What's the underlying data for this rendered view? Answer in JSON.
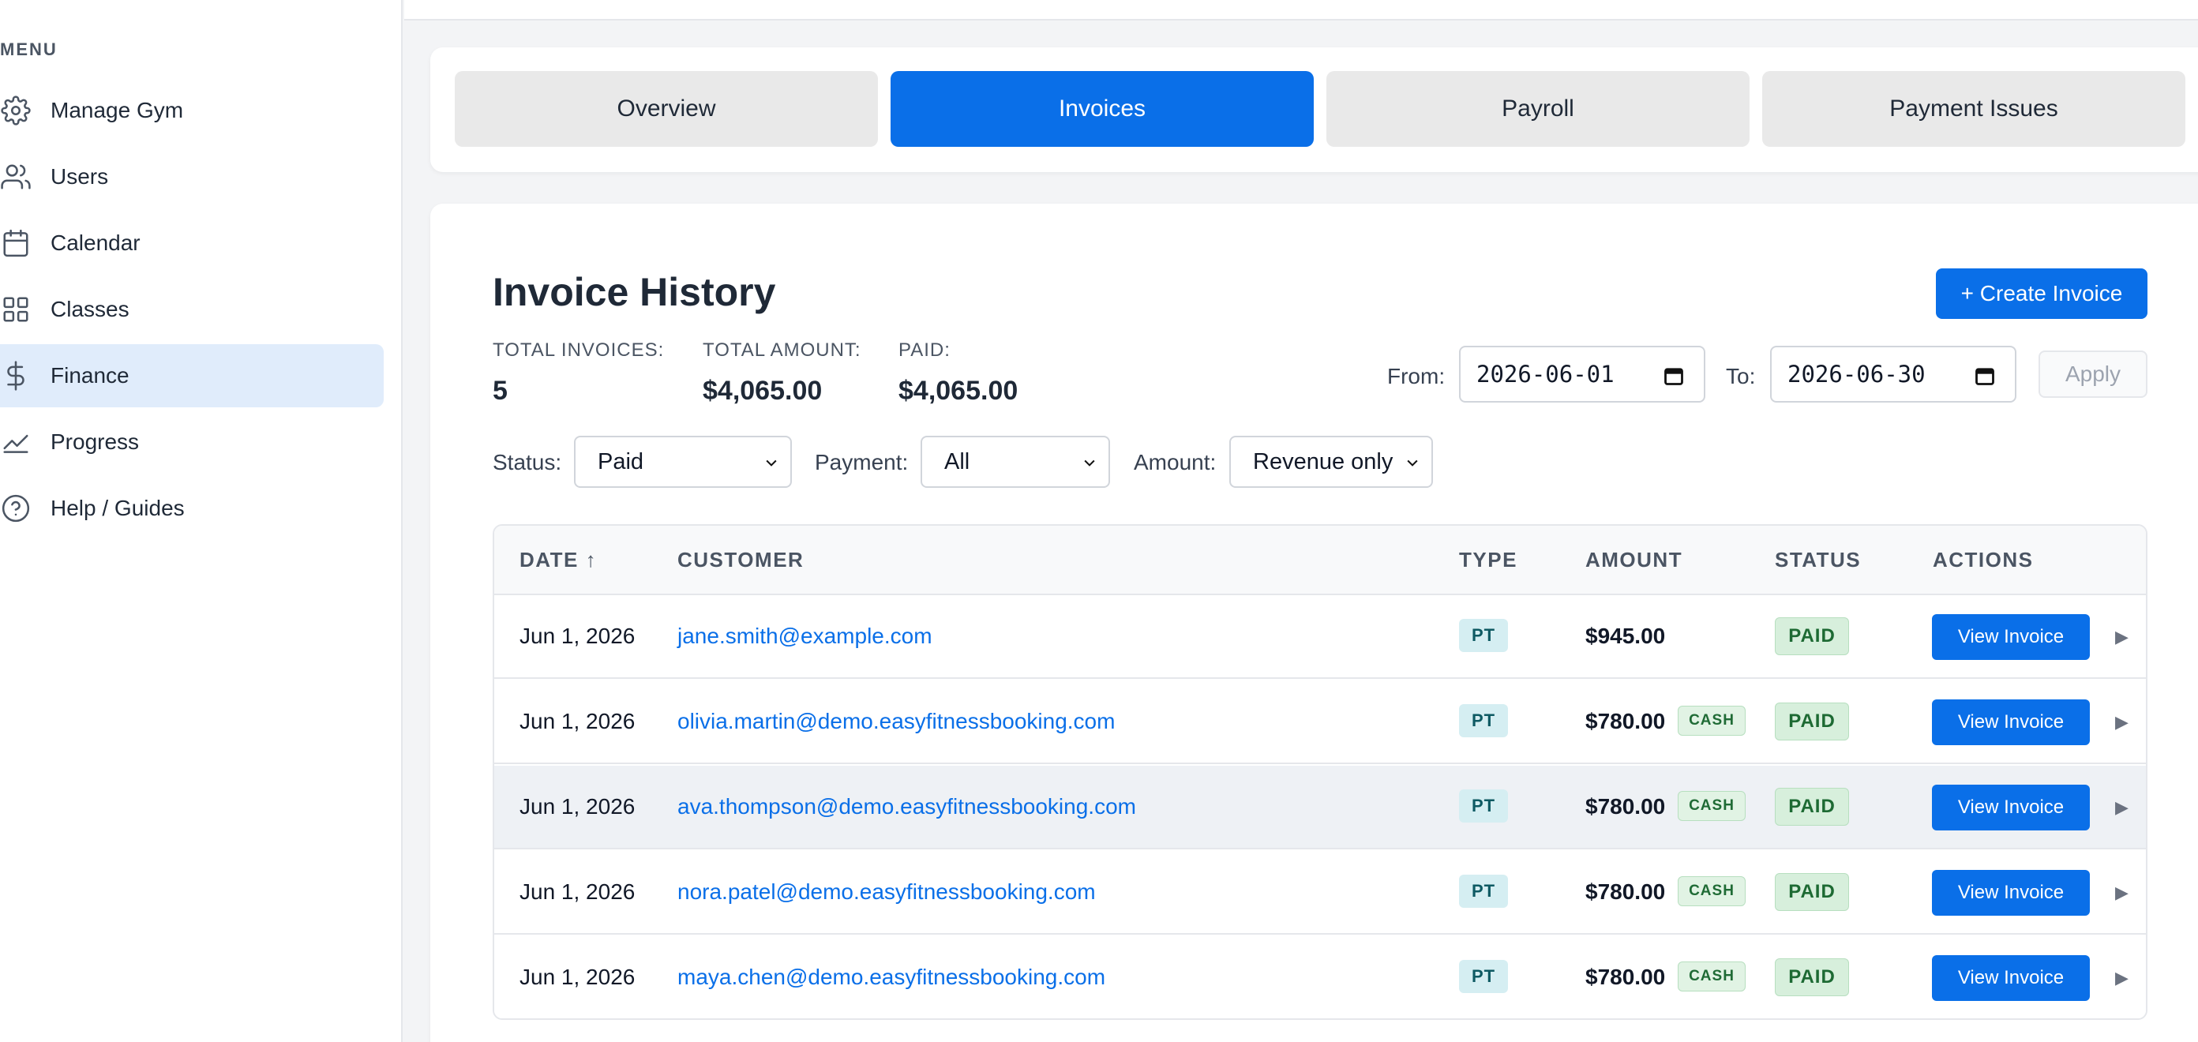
{
  "sidebar": {
    "heading": "MENU",
    "items": [
      {
        "label": "Manage Gym",
        "icon": "gear-icon"
      },
      {
        "label": "Users",
        "icon": "users-icon"
      },
      {
        "label": "Calendar",
        "icon": "calendar-icon"
      },
      {
        "label": "Classes",
        "icon": "grid-icon"
      },
      {
        "label": "Finance",
        "icon": "dollar-icon",
        "active": true
      },
      {
        "label": "Progress",
        "icon": "chart-line-icon"
      },
      {
        "label": "Help / Guides",
        "icon": "help-circle-icon"
      }
    ]
  },
  "tabs": [
    {
      "label": "Overview"
    },
    {
      "label": "Invoices",
      "active": true
    },
    {
      "label": "Payroll"
    },
    {
      "label": "Payment Issues"
    }
  ],
  "invoices": {
    "title": "Invoice History",
    "create_label": "+ Create Invoice",
    "stats": {
      "total_invoices_label": "TOTAL INVOICES:",
      "total_invoices_value": "5",
      "total_amount_label": "TOTAL AMOUNT:",
      "total_amount_value": "$4,065.00",
      "paid_label": "PAID:",
      "paid_value": "$4,065.00"
    },
    "date_filter": {
      "from_label": "From:",
      "from_value": "2026-06-01",
      "to_label": "To:",
      "to_value": "2026-06-30",
      "apply_label": "Apply"
    },
    "filters": {
      "status_label": "Status:",
      "status_value": "Paid",
      "payment_label": "Payment:",
      "payment_value": "All",
      "amount_label": "Amount:",
      "amount_value": "Revenue only"
    },
    "columns": {
      "date": "DATE ↑",
      "customer": "CUSTOMER",
      "type": "TYPE",
      "amount": "AMOUNT",
      "status": "STATUS",
      "actions": "ACTIONS"
    },
    "rows": [
      {
        "date": "Jun 1, 2026",
        "customer": "jane.smith@example.com",
        "type": "PT",
        "amount": "$945.00",
        "method": "",
        "status": "PAID",
        "action": "View Invoice"
      },
      {
        "date": "Jun 1, 2026",
        "customer": "olivia.martin@demo.easyfitnessbooking.com",
        "type": "PT",
        "amount": "$780.00",
        "method": "CASH",
        "status": "PAID",
        "action": "View Invoice"
      },
      {
        "date": "Jun 1, 2026",
        "customer": "ava.thompson@demo.easyfitnessbooking.com",
        "type": "PT",
        "amount": "$780.00",
        "method": "CASH",
        "status": "PAID",
        "action": "View Invoice"
      },
      {
        "date": "Jun 1, 2026",
        "customer": "nora.patel@demo.easyfitnessbooking.com",
        "type": "PT",
        "amount": "$780.00",
        "method": "CASH",
        "status": "PAID",
        "action": "View Invoice"
      },
      {
        "date": "Jun 1, 2026",
        "customer": "maya.chen@demo.easyfitnessbooking.com",
        "type": "PT",
        "amount": "$780.00",
        "method": "CASH",
        "status": "PAID",
        "action": "View Invoice"
      }
    ]
  },
  "colors": {
    "accent": "#0a6fe8",
    "active_nav_bg": "#e0ecfb",
    "paid_badge_bg": "#d7efdc",
    "type_badge_bg": "#d5eef2"
  }
}
